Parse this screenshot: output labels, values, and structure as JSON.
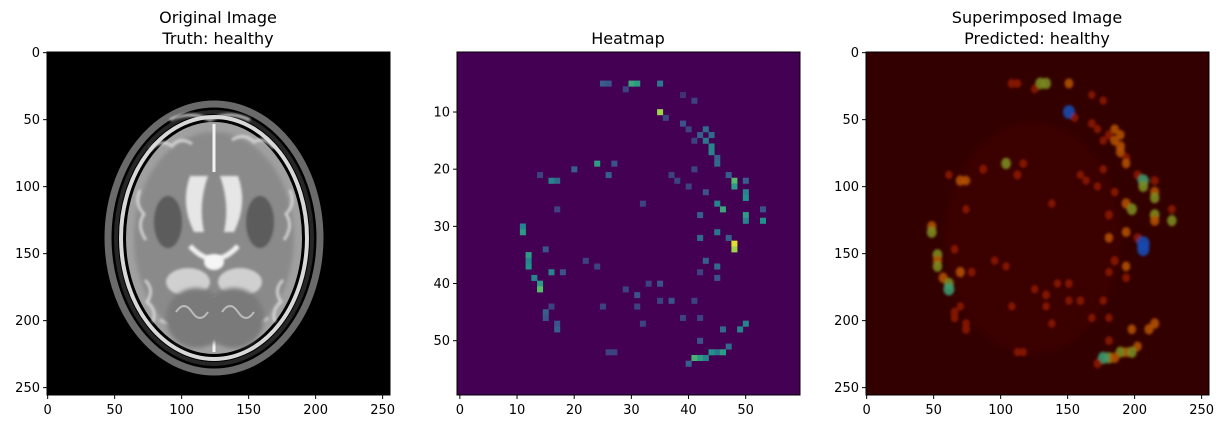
{
  "chart_data": [
    {
      "type": "heatmap",
      "title_line1": "Original Image",
      "title_line2": "Truth: healthy",
      "xlim": [
        -0.5,
        255.5
      ],
      "ylim": [
        255.5,
        -0.5
      ],
      "xticks": [
        0,
        50,
        100,
        150,
        200,
        250
      ],
      "yticks": [
        0,
        50,
        100,
        150,
        200,
        250
      ],
      "content": "grayscale axial brain MRI scan (T2-weighted)"
    },
    {
      "type": "heatmap",
      "title_line1": "Heatmap",
      "title_line2": "",
      "xlim": [
        -0.5,
        59.5
      ],
      "ylim": [
        59.5,
        -0.5
      ],
      "xticks": [
        0,
        10,
        20,
        30,
        40,
        50
      ],
      "yticks": [
        10,
        20,
        30,
        40,
        50
      ],
      "colormap": "viridis",
      "background_value": 0,
      "cells": [
        [
          5,
          25,
          0.3
        ],
        [
          5,
          26,
          0.25
        ],
        [
          5,
          30,
          0.6
        ],
        [
          5,
          31,
          0.55
        ],
        [
          5,
          35,
          0.4
        ],
        [
          6,
          29,
          0.2
        ],
        [
          7,
          39,
          0.15
        ],
        [
          8,
          41,
          0.2
        ],
        [
          10,
          35,
          0.85
        ],
        [
          11,
          36,
          0.2
        ],
        [
          12,
          39,
          0.25
        ],
        [
          13,
          40,
          0.2
        ],
        [
          13,
          43,
          0.35
        ],
        [
          14,
          42,
          0.3
        ],
        [
          14,
          44,
          0.35
        ],
        [
          15,
          41,
          0.2
        ],
        [
          15,
          43,
          0.4
        ],
        [
          16,
          44,
          0.45
        ],
        [
          17,
          44,
          0.45
        ],
        [
          18,
          45,
          0.3
        ],
        [
          19,
          24,
          0.55
        ],
        [
          19,
          27,
          0.25
        ],
        [
          19,
          45,
          0.35
        ],
        [
          20,
          20,
          0.3
        ],
        [
          20,
          41,
          0.2
        ],
        [
          21,
          14,
          0.2
        ],
        [
          21,
          26,
          0.3
        ],
        [
          21,
          37,
          0.2
        ],
        [
          21,
          47,
          0.3
        ],
        [
          22,
          16,
          0.45
        ],
        [
          22,
          17,
          0.35
        ],
        [
          22,
          38,
          0.2
        ],
        [
          22,
          48,
          0.7
        ],
        [
          22,
          50,
          0.3
        ],
        [
          23,
          40,
          0.2
        ],
        [
          23,
          48,
          0.55
        ],
        [
          24,
          43,
          0.25
        ],
        [
          24,
          50,
          0.45
        ],
        [
          25,
          50,
          0.5
        ],
        [
          26,
          32,
          0.2
        ],
        [
          26,
          45,
          0.45
        ],
        [
          27,
          17,
          0.2
        ],
        [
          27,
          46,
          0.6
        ],
        [
          27,
          53,
          0.25
        ],
        [
          28,
          42,
          0.3
        ],
        [
          28,
          50,
          0.55
        ],
        [
          29,
          50,
          0.45
        ],
        [
          29,
          53,
          0.5
        ],
        [
          30,
          11,
          0.45
        ],
        [
          31,
          11,
          0.55
        ],
        [
          31,
          45,
          0.4
        ],
        [
          32,
          42,
          0.35
        ],
        [
          32,
          47,
          0.3
        ],
        [
          33,
          48,
          0.95
        ],
        [
          34,
          48,
          0.85
        ],
        [
          34,
          15,
          0.25
        ],
        [
          35,
          12,
          0.55
        ],
        [
          36,
          12,
          0.45
        ],
        [
          36,
          22,
          0.2
        ],
        [
          36,
          43,
          0.3
        ],
        [
          37,
          12,
          0.5
        ],
        [
          37,
          24,
          0.2
        ],
        [
          37,
          45,
          0.35
        ],
        [
          38,
          16,
          0.45
        ],
        [
          38,
          18,
          0.25
        ],
        [
          38,
          42,
          0.2
        ],
        [
          39,
          13,
          0.45
        ],
        [
          39,
          45,
          0.25
        ],
        [
          40,
          14,
          0.55
        ],
        [
          40,
          33,
          0.2
        ],
        [
          40,
          35,
          0.25
        ],
        [
          41,
          14,
          0.7
        ],
        [
          41,
          29,
          0.2
        ],
        [
          42,
          31,
          0.25
        ],
        [
          43,
          35,
          0.2
        ],
        [
          43,
          37,
          0.25
        ],
        [
          43,
          41,
          0.2
        ],
        [
          44,
          16,
          0.2
        ],
        [
          44,
          25,
          0.2
        ],
        [
          44,
          31,
          0.2
        ],
        [
          45,
          15,
          0.3
        ],
        [
          46,
          15,
          0.25
        ],
        [
          46,
          42,
          0.2
        ],
        [
          46,
          39,
          0.2
        ],
        [
          47,
          17,
          0.25
        ],
        [
          47,
          50,
          0.45
        ],
        [
          47,
          32,
          0.2
        ],
        [
          48,
          17,
          0.3
        ],
        [
          48,
          46,
          0.35
        ],
        [
          48,
          49,
          0.45
        ],
        [
          50,
          42,
          0.25
        ],
        [
          51,
          47,
          0.35
        ],
        [
          52,
          27,
          0.2
        ],
        [
          52,
          45,
          0.4
        ],
        [
          52,
          46,
          0.55
        ],
        [
          52,
          44,
          0.5
        ],
        [
          53,
          42,
          0.55
        ],
        [
          53,
          43,
          0.45
        ],
        [
          53,
          41,
          0.65
        ],
        [
          54,
          40,
          0.3
        ],
        [
          52,
          26,
          0.2
        ]
      ]
    },
    {
      "type": "heatmap",
      "title_line1": "Superimposed Image",
      "title_line2": "Predicted: healthy",
      "xlim": [
        -0.5,
        255.5
      ],
      "ylim": [
        255.5,
        -0.5
      ],
      "xticks": [
        0,
        50,
        100,
        150,
        200,
        250
      ],
      "yticks": [
        0,
        50,
        100,
        150,
        200,
        250
      ],
      "colormap": "jet",
      "background_color": "#330000"
    }
  ]
}
